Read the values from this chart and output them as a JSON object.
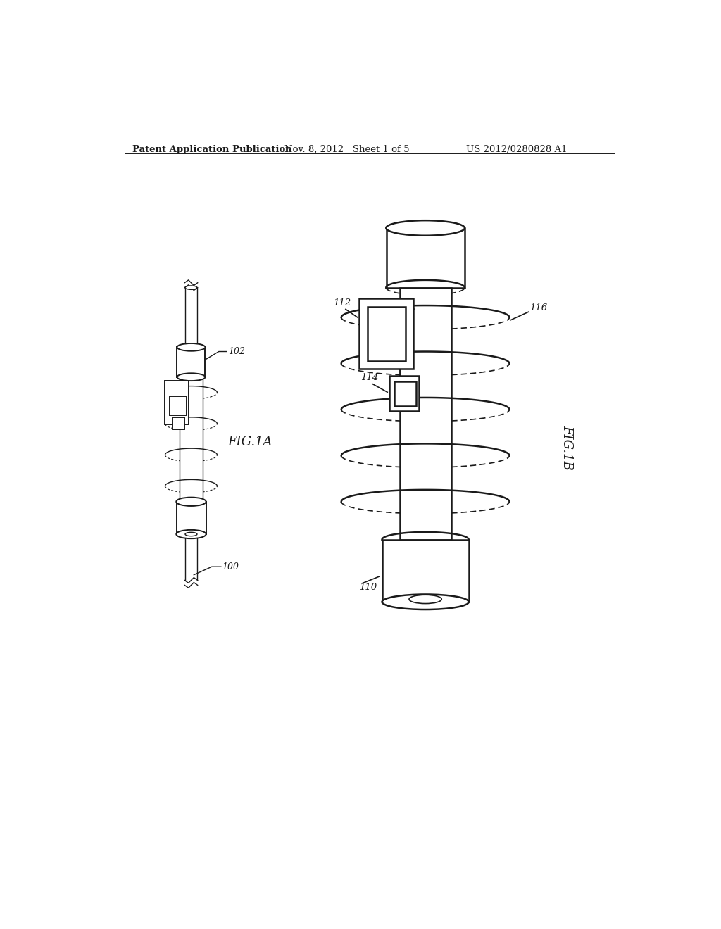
{
  "title_left": "Patent Application Publication",
  "title_mid": "Nov. 8, 2012   Sheet 1 of 5",
  "title_right": "US 2012/0280828 A1",
  "fig1a_label": "FIG.1A",
  "fig1b_label": "FIG.1B",
  "label_100": "100",
  "label_102": "102",
  "label_110": "110",
  "label_112": "112",
  "label_114": "114",
  "label_116": "116",
  "bg_color": "#ffffff",
  "line_color": "#1a1a1a",
  "lw": 1.0,
  "lw_thick": 1.5
}
